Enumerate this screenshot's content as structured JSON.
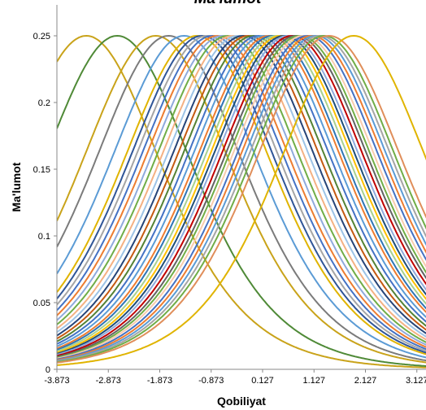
{
  "chart_data": {
    "type": "line",
    "title": "Ma'lumot",
    "xlabel": "Qobiliyat",
    "ylabel": "Ma'lumot",
    "xlim": [
      -3.873,
      4.127
    ],
    "ylim": [
      0,
      0.25
    ],
    "x_ticks": [
      "-3.873",
      "-2.873",
      "-1.873",
      "-0.873",
      "0.127",
      "1.127",
      "2.127",
      "3.127"
    ],
    "y_ticks": [
      "0",
      "0.05",
      "0.1",
      "0.15",
      "0.2",
      "0.25"
    ],
    "grid": false,
    "legend": "none",
    "curve_type": "item information (peak 0.25 at item difficulty)",
    "series": [
      {
        "b": -3.3,
        "color": "#c9a31a"
      },
      {
        "b": -2.7,
        "color": "#4f8a37"
      },
      {
        "b": -1.95,
        "color": "#c9a31a"
      },
      {
        "b": -1.7,
        "color": "#7b7b7b"
      },
      {
        "b": -1.4,
        "color": "#5b9bd5"
      },
      {
        "b": -1.15,
        "color": "#e0b400"
      },
      {
        "b": -1.05,
        "color": "#2f5597"
      },
      {
        "b": -0.95,
        "color": "#a5a5a5"
      },
      {
        "b": -0.85,
        "color": "#4472c4"
      },
      {
        "b": -0.75,
        "color": "#ed7d31"
      },
      {
        "b": -0.65,
        "color": "#8faadc"
      },
      {
        "b": -0.55,
        "color": "#70ad47"
      },
      {
        "b": -0.45,
        "color": "#f4b183"
      },
      {
        "b": -0.35,
        "color": "#9dc3e6"
      },
      {
        "b": -0.25,
        "color": "#264478"
      },
      {
        "b": -0.15,
        "color": "#c55a11"
      },
      {
        "b": -0.05,
        "color": "#548235"
      },
      {
        "b": 0.05,
        "color": "#4472c4"
      },
      {
        "b": 0.15,
        "color": "#5b9bd5"
      },
      {
        "b": 0.25,
        "color": "#ed7d31"
      },
      {
        "b": 0.32,
        "color": "#2e75b6"
      },
      {
        "b": 0.4,
        "color": "#a9d18e"
      },
      {
        "b": 0.48,
        "color": "#ffc000"
      },
      {
        "b": 0.55,
        "color": "#1f4e79"
      },
      {
        "b": 0.62,
        "color": "#8faadc"
      },
      {
        "b": 0.7,
        "color": "#c00000"
      },
      {
        "b": 0.78,
        "color": "#636363"
      },
      {
        "b": 0.85,
        "color": "#70ad47"
      },
      {
        "b": 0.92,
        "color": "#f8cbad"
      },
      {
        "b": 1.0,
        "color": "#4472c4"
      },
      {
        "b": 1.08,
        "color": "#ed7d31"
      },
      {
        "b": 1.16,
        "color": "#5b9bd5"
      },
      {
        "b": 1.24,
        "color": "#a5a5a5"
      },
      {
        "b": 1.32,
        "color": "#70ad47"
      },
      {
        "b": 1.42,
        "color": "#e08e5a"
      },
      {
        "b": 1.9,
        "color": "#e0b400"
      }
    ]
  }
}
